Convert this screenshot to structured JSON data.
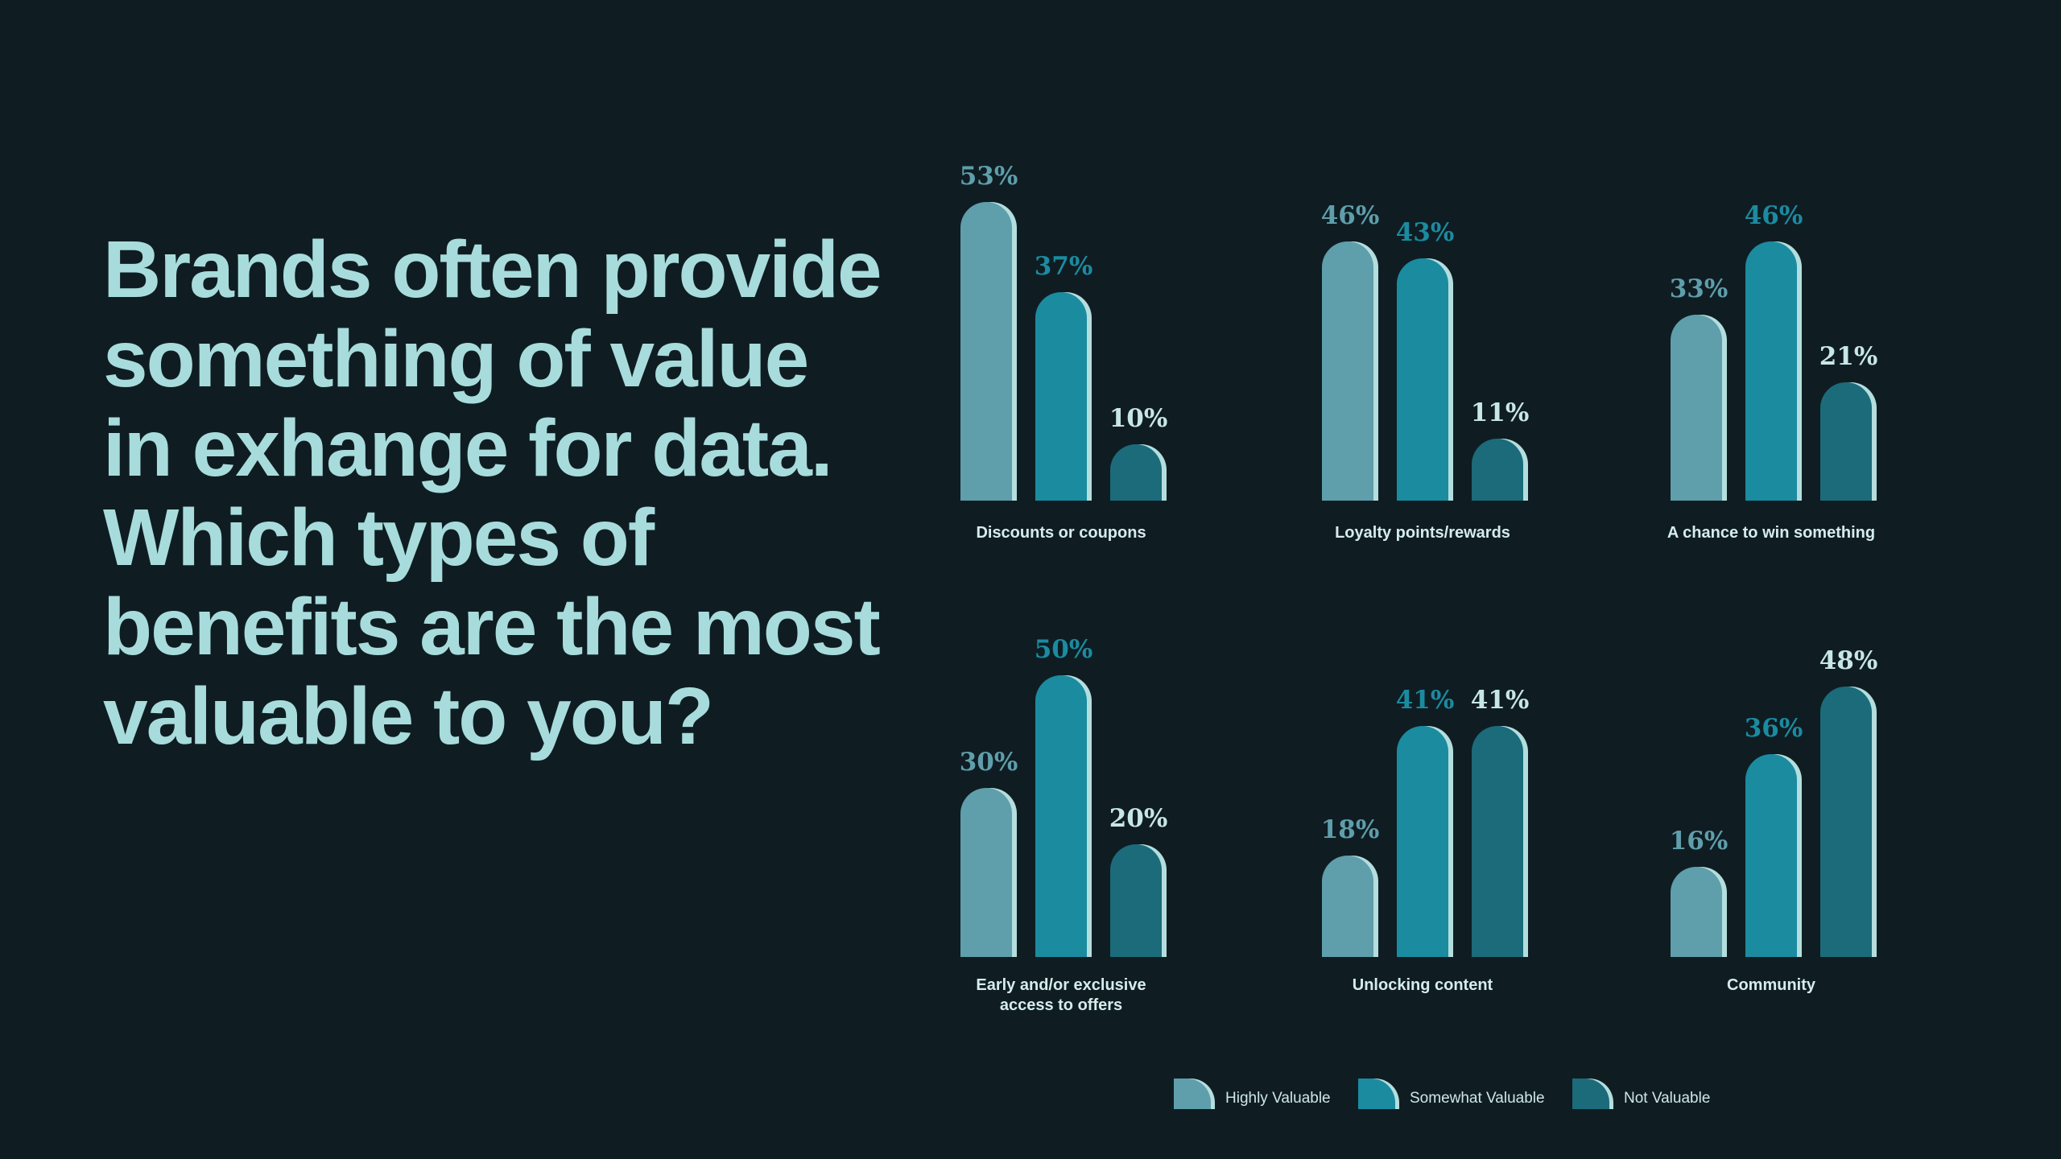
{
  "chart_data": {
    "type": "bar",
    "title": "Brands often provide something of value in exhange for data. Which types of benefits are the most valuable to you?",
    "categories": [
      "Discounts or coupons",
      "Loyalty points/rewards",
      "A chance to win something",
      "Early and/or exclusive access to offers",
      "Unlocking content",
      "Community"
    ],
    "series": [
      {
        "name": "Highly Valuable",
        "color": "#5f9eab",
        "values": [
          53,
          46,
          33,
          30,
          18,
          16
        ],
        "value_labels": [
          "53%",
          "46%",
          "33%",
          "30%",
          "18%",
          "16%"
        ]
      },
      {
        "name": "Somewhat Valuable",
        "color": "#1b8ba0",
        "values": [
          37,
          43,
          46,
          50,
          41,
          36
        ],
        "value_labels": [
          "37%",
          "43%",
          "46%",
          "50%",
          "41%",
          "36%"
        ]
      },
      {
        "name": "Not Valuable",
        "color": "#1b6b7b",
        "values": [
          10,
          11,
          21,
          20,
          41,
          48
        ],
        "value_labels": [
          "10%",
          "11%",
          "21%",
          "20%",
          "41%",
          "48%"
        ]
      }
    ]
  }
}
